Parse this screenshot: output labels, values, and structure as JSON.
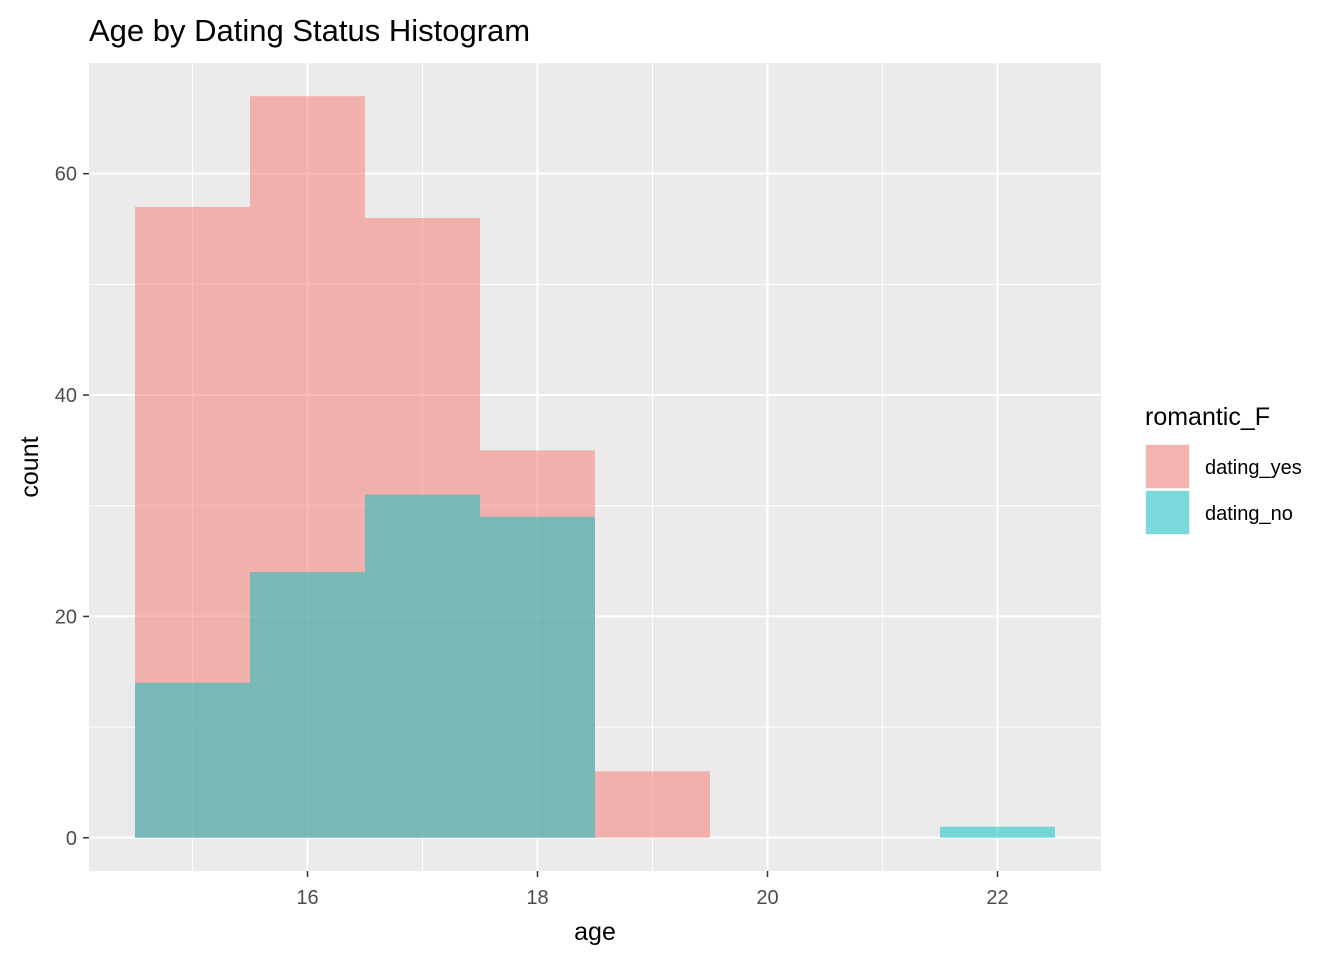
{
  "chart_data": {
    "type": "bar",
    "subtype": "overlapping-histogram",
    "title": "Age by Dating Status Histogram",
    "xlabel": "age",
    "ylabel": "count",
    "xlim": [
      14.1,
      22.9
    ],
    "ylim": [
      -3.0,
      70.0
    ],
    "xticks": [
      16,
      18,
      20,
      22
    ],
    "yticks": [
      0,
      20,
      40,
      60
    ],
    "bin_width": 1,
    "bin_centers": [
      15,
      16,
      17,
      18,
      19,
      20,
      21,
      22
    ],
    "series": [
      {
        "name": "dating_yes",
        "color": "#F8766D",
        "opacity": 0.5,
        "values": [
          57,
          67,
          56,
          35,
          6,
          0,
          0,
          0
        ]
      },
      {
        "name": "dating_no",
        "color": "#00BFC4",
        "opacity": 0.5,
        "values": [
          14,
          24,
          31,
          29,
          0,
          0,
          0,
          1
        ]
      }
    ],
    "legend": {
      "title": "romantic_F",
      "position": "right"
    },
    "grid": true,
    "panel_background": "#EBEBEB",
    "grid_color": "#FFFFFF"
  }
}
